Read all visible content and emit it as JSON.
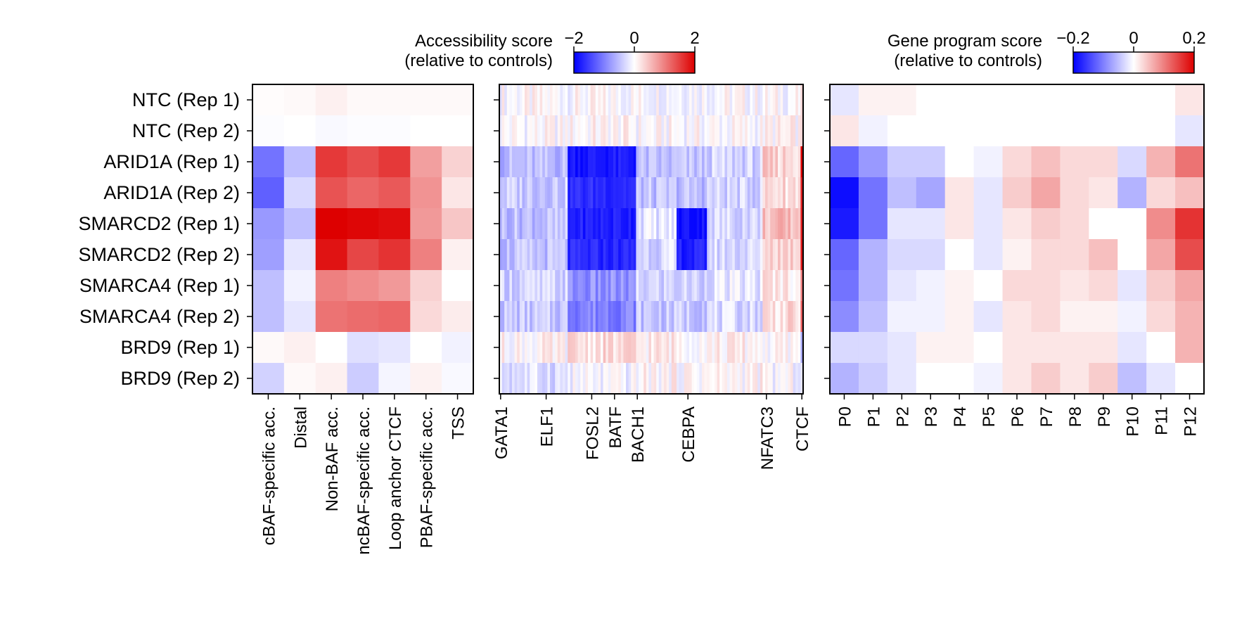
{
  "chart_data": [
    {
      "type": "heatmap",
      "panel": "accessibility-regions",
      "rows": [
        "NTC (Rep 1)",
        "NTC (Rep 2)",
        "ARID1A (Rep 1)",
        "ARID1A (Rep 2)",
        "SMARCD2 (Rep 1)",
        "SMARCD2 (Rep 2)",
        "SMARCA4 (Rep 1)",
        "SMARCA4 (Rep 2)",
        "BRD9 (Rep 1)",
        "BRD9 (Rep 2)"
      ],
      "columns": [
        "cBAF-specific acc.",
        "Distal",
        "Non-BAF acc.",
        "ncBAF-specific acc.",
        "Loop anchor CTCF",
        "PBAF-specific acc.",
        "TSS"
      ],
      "values": [
        [
          0.02,
          0.05,
          0.12,
          0.05,
          0.05,
          0.05,
          0.05
        ],
        [
          -0.02,
          0.0,
          -0.05,
          -0.02,
          -0.02,
          0.0,
          0.0
        ],
        [
          -1.1,
          -0.5,
          1.55,
          1.4,
          1.55,
          0.75,
          0.35
        ],
        [
          -1.25,
          -0.3,
          1.35,
          1.2,
          1.3,
          0.85,
          0.2
        ],
        [
          -0.8,
          -0.5,
          2.0,
          1.95,
          1.9,
          0.8,
          0.45
        ],
        [
          -0.75,
          -0.2,
          1.85,
          1.45,
          1.6,
          1.0,
          0.12
        ],
        [
          -0.5,
          -0.1,
          1.0,
          0.9,
          0.8,
          0.35,
          0.0
        ],
        [
          -0.5,
          -0.2,
          1.1,
          1.15,
          1.2,
          0.3,
          0.15
        ],
        [
          0.05,
          0.12,
          0.0,
          -0.25,
          -0.2,
          0.0,
          -0.1
        ],
        [
          -0.35,
          0.05,
          0.12,
          -0.4,
          -0.08,
          0.1,
          -0.05
        ]
      ],
      "colorbar": {
        "title": [
          "Accessibility score",
          "(relative to controls)"
        ],
        "ticks": [
          "−2",
          "0",
          "2"
        ],
        "range": [
          -2,
          2
        ]
      },
      "colormap": [
        "#0000ff",
        "#ffffff",
        "#dd0000"
      ]
    },
    {
      "type": "heatmap",
      "panel": "tf-motifs",
      "rows": [
        "NTC (Rep 1)",
        "NTC (Rep 2)",
        "ARID1A (Rep 1)",
        "ARID1A (Rep 2)",
        "SMARCD2 (Rep 1)",
        "SMARCD2 (Rep 2)",
        "SMARCA4 (Rep 1)",
        "SMARCA4 (Rep 2)",
        "BRD9 (Rep 1)",
        "BRD9 (Rep 2)"
      ],
      "column_count": 120,
      "tick_labels": [
        "GATA1",
        "ELF1",
        "FOSL2",
        "BATF",
        "BACH1",
        "CEBPA",
        "NFATC3",
        "CTCF"
      ],
      "tick_columns": [
        0,
        18,
        36,
        45,
        54,
        74,
        105,
        119
      ],
      "segments": [
        {
          "from": 0,
          "to": 27,
          "rows": [
            0.0,
            0.0,
            -0.55,
            -0.4,
            -0.5,
            -0.5,
            -0.35,
            -0.45,
            0.05,
            -0.25
          ]
        },
        {
          "from": 27,
          "to": 54,
          "rows": [
            0.0,
            0.05,
            -1.8,
            -1.65,
            -1.75,
            -1.7,
            -0.9,
            -0.95,
            0.25,
            -0.1
          ]
        },
        {
          "from": 54,
          "to": 70,
          "rows": [
            0.0,
            0.0,
            -0.55,
            -0.5,
            -0.2,
            -0.3,
            -0.35,
            -0.45,
            0.15,
            0.05
          ]
        },
        {
          "from": 70,
          "to": 82,
          "rows": [
            0.0,
            0.0,
            -0.5,
            -0.5,
            -1.85,
            -1.75,
            -0.35,
            -0.4,
            0.1,
            0.05
          ]
        },
        {
          "from": 82,
          "to": 104,
          "rows": [
            0.0,
            0.0,
            -0.35,
            -0.35,
            -0.3,
            -0.3,
            -0.2,
            -0.3,
            0.1,
            0.05
          ]
        },
        {
          "from": 104,
          "to": 119,
          "rows": [
            0.0,
            0.05,
            0.35,
            0.3,
            0.5,
            0.4,
            0.2,
            0.25,
            0.0,
            -0.05
          ]
        },
        {
          "from": 119,
          "to": 120,
          "rows": [
            0.05,
            0.1,
            1.9,
            1.8,
            1.9,
            1.9,
            1.0,
            1.0,
            -0.4,
            -0.3
          ]
        }
      ],
      "colorbar": {
        "range": [
          -2,
          2
        ]
      }
    },
    {
      "type": "heatmap",
      "panel": "gene-programs",
      "rows": [
        "NTC (Rep 1)",
        "NTC (Rep 2)",
        "ARID1A (Rep 1)",
        "ARID1A (Rep 2)",
        "SMARCD2 (Rep 1)",
        "SMARCD2 (Rep 2)",
        "SMARCA4 (Rep 1)",
        "SMARCA4 (Rep 2)",
        "BRD9 (Rep 1)",
        "BRD9 (Rep 2)"
      ],
      "columns": [
        "P0",
        "P1",
        "P2",
        "P3",
        "P4",
        "P5",
        "P6",
        "P7",
        "P8",
        "P9",
        "P10",
        "P11",
        "P12"
      ],
      "values": [
        [
          -0.02,
          0.01,
          0.01,
          0.0,
          0.0,
          0.0,
          0.0,
          0.0,
          0.0,
          0.0,
          0.0,
          0.0,
          0.02
        ],
        [
          0.02,
          -0.01,
          0.0,
          0.0,
          0.0,
          0.0,
          0.0,
          0.0,
          0.0,
          0.0,
          0.0,
          0.0,
          -0.02
        ],
        [
          -0.12,
          -0.08,
          -0.04,
          -0.04,
          0.0,
          -0.01,
          0.03,
          0.05,
          0.03,
          0.03,
          -0.03,
          0.06,
          0.11
        ],
        [
          -0.19,
          -0.11,
          -0.05,
          -0.07,
          0.02,
          -0.02,
          0.04,
          0.07,
          0.03,
          0.02,
          -0.06,
          0.03,
          0.05
        ],
        [
          -0.18,
          -0.11,
          -0.02,
          -0.02,
          0.02,
          -0.02,
          0.02,
          0.04,
          0.03,
          0.0,
          0.0,
          0.09,
          0.16
        ],
        [
          -0.12,
          -0.06,
          -0.03,
          -0.03,
          0.0,
          -0.02,
          0.01,
          0.03,
          0.03,
          0.05,
          0.0,
          0.07,
          0.14
        ],
        [
          -0.11,
          -0.06,
          -0.02,
          -0.01,
          0.01,
          0.0,
          0.03,
          0.03,
          0.02,
          0.03,
          -0.02,
          0.04,
          0.07
        ],
        [
          -0.09,
          -0.05,
          -0.01,
          -0.01,
          0.01,
          -0.02,
          0.02,
          0.03,
          0.01,
          0.01,
          -0.01,
          0.03,
          0.06
        ],
        [
          -0.03,
          -0.03,
          -0.02,
          0.01,
          0.01,
          0.0,
          0.02,
          0.02,
          0.02,
          0.02,
          -0.02,
          0.0,
          0.06
        ],
        [
          -0.06,
          -0.04,
          -0.02,
          0.0,
          0.0,
          -0.01,
          0.02,
          0.04,
          0.02,
          0.04,
          -0.05,
          -0.02,
          0.0
        ]
      ],
      "colorbar": {
        "title": [
          "Gene program score",
          "(relative to controls)"
        ],
        "ticks": [
          "−0.2",
          "0",
          "0.2"
        ],
        "range": [
          -0.2,
          0.2
        ]
      }
    }
  ]
}
